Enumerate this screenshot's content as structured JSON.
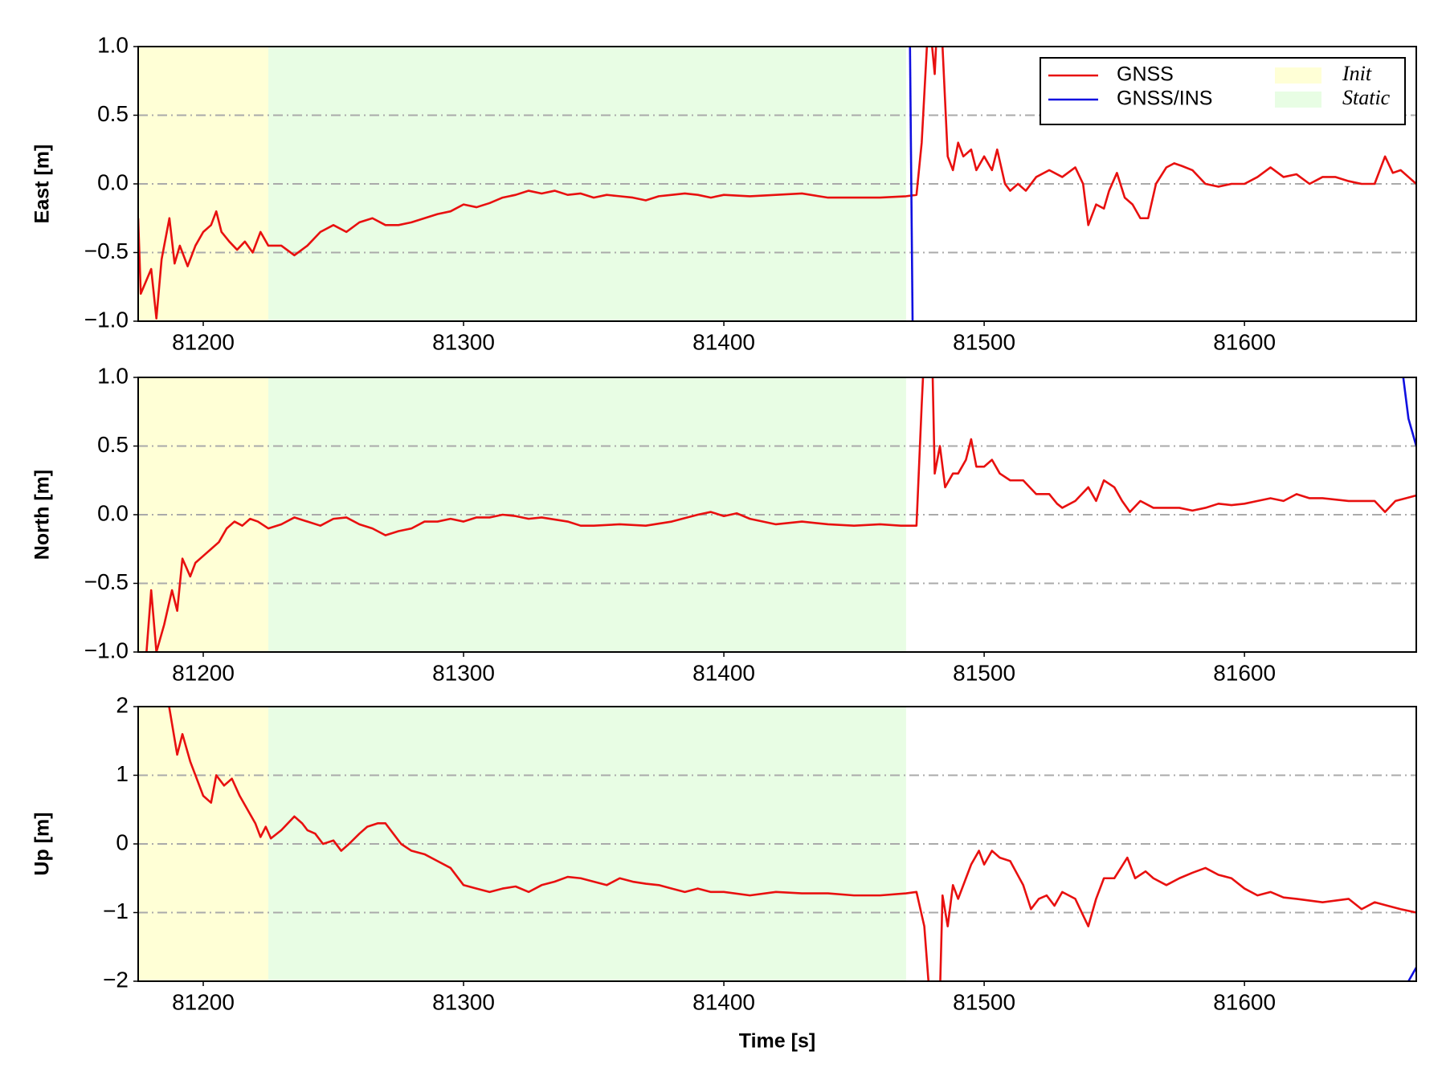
{
  "chart_data": [
    {
      "type": "line",
      "ylabel": "East [m]",
      "xlim": [
        81175,
        81666
      ],
      "xticks": [
        81200,
        81300,
        81400,
        81500,
        81600
      ],
      "ylim": [
        -1.0,
        1.0
      ],
      "yticks": [
        {
          "value": -1.0,
          "label": "−1.0"
        },
        {
          "value": -0.5,
          "label": "−0.5"
        },
        {
          "value": 0.0,
          "label": "0.0"
        },
        {
          "value": 0.5,
          "label": "0.5"
        },
        {
          "value": 1.0,
          "label": "1.0"
        }
      ],
      "grid": true,
      "legend": "upper right",
      "spans": [
        {
          "name": "Init",
          "color": "#ffffd6",
          "x": [
            81175,
            81225
          ]
        },
        {
          "name": "Static",
          "color": "#e8fde4",
          "x": [
            81225,
            81470
          ]
        }
      ],
      "series": [
        {
          "name": "GNSS",
          "color": "#e8100f",
          "x": [
            81175,
            81176,
            81180,
            81182,
            81184,
            81187,
            81189,
            81191,
            81194,
            81197,
            81200,
            81203,
            81205,
            81207,
            81210,
            81213,
            81216,
            81219,
            81222,
            81225,
            81230,
            81235,
            81240,
            81245,
            81250,
            81255,
            81260,
            81265,
            81270,
            81275,
            81280,
            81285,
            81290,
            81295,
            81300,
            81305,
            81310,
            81315,
            81320,
            81325,
            81330,
            81335,
            81340,
            81345,
            81350,
            81355,
            81360,
            81365,
            81370,
            81375,
            81380,
            81385,
            81390,
            81395,
            81400,
            81410,
            81420,
            81430,
            81440,
            81450,
            81460,
            81470,
            81474,
            81476,
            81478,
            81479,
            81481,
            81482,
            81484,
            81486,
            81488,
            81490,
            81492,
            81495,
            81497,
            81500,
            81503,
            81505,
            81508,
            81510,
            81513,
            81516,
            81520,
            81525,
            81530,
            81535,
            81538,
            81540,
            81543,
            81546,
            81548,
            81551,
            81554,
            81557,
            81560,
            81563,
            81566,
            81570,
            81573,
            81576,
            81580,
            81585,
            81590,
            81595,
            81600,
            81605,
            81610,
            81615,
            81620,
            81625,
            81630,
            81635,
            81640,
            81645,
            81650,
            81654,
            81657,
            81660,
            81663,
            81666
          ],
          "values": [
            -0.25,
            -0.8,
            -0.62,
            -0.98,
            -0.55,
            -0.25,
            -0.58,
            -0.45,
            -0.6,
            -0.45,
            -0.35,
            -0.3,
            -0.2,
            -0.35,
            -0.42,
            -0.48,
            -0.42,
            -0.5,
            -0.35,
            -0.45,
            -0.45,
            -0.52,
            -0.45,
            -0.35,
            -0.3,
            -0.35,
            -0.28,
            -0.25,
            -0.3,
            -0.3,
            -0.28,
            -0.25,
            -0.22,
            -0.2,
            -0.15,
            -0.17,
            -0.14,
            -0.1,
            -0.08,
            -0.05,
            -0.07,
            -0.05,
            -0.08,
            -0.07,
            -0.1,
            -0.08,
            -0.09,
            -0.1,
            -0.12,
            -0.09,
            -0.08,
            -0.07,
            -0.08,
            -0.1,
            -0.08,
            -0.09,
            -0.08,
            -0.07,
            -0.1,
            -0.1,
            -0.1,
            -0.09,
            -0.08,
            0.3,
            1.0,
            1.2,
            0.8,
            1.2,
            1.0,
            0.2,
            0.1,
            0.3,
            0.2,
            0.25,
            0.1,
            0.2,
            0.1,
            0.25,
            0.0,
            -0.05,
            0.0,
            -0.05,
            0.05,
            0.1,
            0.05,
            0.12,
            0.0,
            -0.3,
            -0.15,
            -0.18,
            -0.05,
            0.08,
            -0.1,
            -0.15,
            -0.25,
            -0.25,
            0.0,
            0.12,
            0.15,
            0.13,
            0.1,
            0.0,
            -0.02,
            0.0,
            0.0,
            0.05,
            0.12,
            0.05,
            0.07,
            0.0,
            0.05,
            0.05,
            0.02,
            0.0,
            0.0,
            0.2,
            0.08,
            0.1,
            0.05,
            0.0
          ]
        },
        {
          "name": "GNSS/INS",
          "color": "#1010e0",
          "x": [
            81471.5,
            81472.5
          ],
          "values": [
            1.0,
            -1.0
          ]
        }
      ]
    },
    {
      "type": "line",
      "ylabel": "North [m]",
      "xlim": [
        81175,
        81666
      ],
      "xticks": [
        81200,
        81300,
        81400,
        81500,
        81600
      ],
      "ylim": [
        -1.0,
        1.0
      ],
      "yticks": [
        {
          "value": -1.0,
          "label": "−1.0"
        },
        {
          "value": -0.5,
          "label": "−0.5"
        },
        {
          "value": 0.0,
          "label": "0.0"
        },
        {
          "value": 0.5,
          "label": "0.5"
        },
        {
          "value": 1.0,
          "label": "1.0"
        }
      ],
      "grid": true,
      "spans": [
        {
          "name": "Init",
          "color": "#ffffd6",
          "x": [
            81175,
            81225
          ]
        },
        {
          "name": "Static",
          "color": "#e8fde4",
          "x": [
            81225,
            81470
          ]
        }
      ],
      "series": [
        {
          "name": "GNSS",
          "color": "#e8100f",
          "x": [
            81175,
            81178,
            81180,
            81182,
            81185,
            81188,
            81190,
            81192,
            81195,
            81197,
            81200,
            81203,
            81206,
            81209,
            81212,
            81215,
            81218,
            81221,
            81225,
            81230,
            81235,
            81240,
            81245,
            81250,
            81255,
            81260,
            81265,
            81270,
            81275,
            81280,
            81285,
            81290,
            81295,
            81300,
            81305,
            81310,
            81315,
            81320,
            81325,
            81330,
            81340,
            81345,
            81350,
            81360,
            81370,
            81380,
            81390,
            81395,
            81400,
            81405,
            81410,
            81420,
            81430,
            81440,
            81450,
            81460,
            81468,
            81474,
            81476,
            81477,
            81480,
            81481,
            81483,
            81485,
            81488,
            81490,
            81493,
            81495,
            81497,
            81500,
            81503,
            81506,
            81510,
            81515,
            81520,
            81525,
            81528,
            81530,
            81535,
            81540,
            81543,
            81546,
            81550,
            81553,
            81556,
            81560,
            81565,
            81570,
            81575,
            81580,
            81585,
            81590,
            81595,
            81600,
            81605,
            81610,
            81615,
            81620,
            81625,
            81630,
            81640,
            81650,
            81654,
            81658,
            81662,
            81666
          ],
          "values": [
            -1.0,
            -1.05,
            -0.55,
            -1.0,
            -0.8,
            -0.55,
            -0.7,
            -0.32,
            -0.45,
            -0.35,
            -0.3,
            -0.25,
            -0.2,
            -0.1,
            -0.05,
            -0.08,
            -0.03,
            -0.05,
            -0.1,
            -0.07,
            -0.02,
            -0.05,
            -0.08,
            -0.03,
            -0.02,
            -0.07,
            -0.1,
            -0.15,
            -0.12,
            -0.1,
            -0.05,
            -0.05,
            -0.03,
            -0.05,
            -0.02,
            -0.02,
            0.0,
            -0.01,
            -0.03,
            -0.02,
            -0.05,
            -0.08,
            -0.08,
            -0.07,
            -0.08,
            -0.05,
            0.0,
            0.02,
            -0.01,
            0.01,
            -0.03,
            -0.07,
            -0.05,
            -0.07,
            -0.08,
            -0.07,
            -0.08,
            -0.08,
            0.8,
            1.2,
            1.2,
            0.3,
            0.5,
            0.2,
            0.3,
            0.3,
            0.4,
            0.55,
            0.35,
            0.35,
            0.4,
            0.3,
            0.25,
            0.25,
            0.15,
            0.15,
            0.08,
            0.05,
            0.1,
            0.2,
            0.1,
            0.25,
            0.2,
            0.1,
            0.02,
            0.1,
            0.05,
            0.05,
            0.05,
            0.03,
            0.05,
            0.08,
            0.07,
            0.08,
            0.1,
            0.12,
            0.1,
            0.15,
            0.12,
            0.12,
            0.1,
            0.1,
            0.02,
            0.1,
            0.12,
            0.14
          ]
        },
        {
          "name": "GNSS/INS",
          "color": "#1010e0",
          "x": [
            81661,
            81663,
            81666
          ],
          "values": [
            1.0,
            0.7,
            0.5
          ]
        }
      ]
    },
    {
      "type": "line",
      "ylabel": "Up [m]",
      "xlabel": "Time [s]",
      "xlim": [
        81175,
        81666
      ],
      "xticks": [
        81200,
        81300,
        81400,
        81500,
        81600
      ],
      "ylim": [
        -2,
        2
      ],
      "yticks": [
        {
          "value": -2,
          "label": "−2"
        },
        {
          "value": -1,
          "label": "−1"
        },
        0,
        1,
        2
      ],
      "grid": true,
      "spans": [
        {
          "name": "Init",
          "color": "#ffffd6",
          "x": [
            81175,
            81225
          ]
        },
        {
          "name": "Static",
          "color": "#e8fde4",
          "x": [
            81225,
            81470
          ]
        }
      ],
      "series": [
        {
          "name": "GNSS",
          "color": "#e8100f",
          "x": [
            81186,
            81190,
            81192,
            81195,
            81198,
            81200,
            81203,
            81205,
            81208,
            81211,
            81214,
            81217,
            81220,
            81222,
            81224,
            81226,
            81230,
            81235,
            81238,
            81240,
            81243,
            81246,
            81250,
            81253,
            81256,
            81260,
            81263,
            81267,
            81270,
            81273,
            81276,
            81280,
            81285,
            81290,
            81295,
            81300,
            81305,
            81310,
            81315,
            81320,
            81325,
            81330,
            81335,
            81340,
            81345,
            81350,
            81355,
            81360,
            81365,
            81370,
            81375,
            81380,
            81385,
            81390,
            81395,
            81400,
            81410,
            81420,
            81430,
            81440,
            81450,
            81460,
            81470,
            81474,
            81477,
            81479,
            81483,
            81484,
            81486,
            81488,
            81490,
            81493,
            81495,
            81498,
            81500,
            81503,
            81506,
            81510,
            81515,
            81518,
            81521,
            81524,
            81527,
            81530,
            81535,
            81540,
            81543,
            81546,
            81550,
            81555,
            81558,
            81562,
            81565,
            81570,
            81575,
            81580,
            81585,
            81590,
            81595,
            81600,
            81605,
            81610,
            81615,
            81620,
            81630,
            81640,
            81645,
            81650,
            81655,
            81660,
            81666
          ],
          "values": [
            2.2,
            1.3,
            1.6,
            1.2,
            0.9,
            0.7,
            0.6,
            1.0,
            0.85,
            0.95,
            0.7,
            0.5,
            0.3,
            0.1,
            0.25,
            0.08,
            0.2,
            0.4,
            0.3,
            0.2,
            0.15,
            0.0,
            0.05,
            -0.1,
            0.0,
            0.15,
            0.25,
            0.3,
            0.3,
            0.15,
            0.0,
            -0.1,
            -0.15,
            -0.25,
            -0.35,
            -0.6,
            -0.65,
            -0.7,
            -0.65,
            -0.62,
            -0.7,
            -0.6,
            -0.55,
            -0.48,
            -0.5,
            -0.55,
            -0.6,
            -0.5,
            -0.55,
            -0.58,
            -0.6,
            -0.65,
            -0.7,
            -0.65,
            -0.7,
            -0.7,
            -0.75,
            -0.7,
            -0.72,
            -0.72,
            -0.75,
            -0.75,
            -0.72,
            -0.7,
            -1.2,
            -2.2,
            -2.2,
            -0.75,
            -1.2,
            -0.6,
            -0.8,
            -0.5,
            -0.3,
            -0.1,
            -0.3,
            -0.1,
            -0.2,
            -0.25,
            -0.6,
            -0.95,
            -0.8,
            -0.75,
            -0.9,
            -0.7,
            -0.8,
            -1.2,
            -0.8,
            -0.5,
            -0.5,
            -0.2,
            -0.5,
            -0.4,
            -0.5,
            -0.6,
            -0.5,
            -0.42,
            -0.35,
            -0.45,
            -0.5,
            -0.65,
            -0.75,
            -0.7,
            -0.78,
            -0.8,
            -0.85,
            -0.8,
            -0.95,
            -0.85,
            -0.9,
            -0.95,
            -1.0
          ]
        },
        {
          "name": "GNSS/INS",
          "color": "#1010e0",
          "x": [
            81663,
            81666
          ],
          "values": [
            -2.0,
            -1.8
          ]
        }
      ]
    }
  ]
}
